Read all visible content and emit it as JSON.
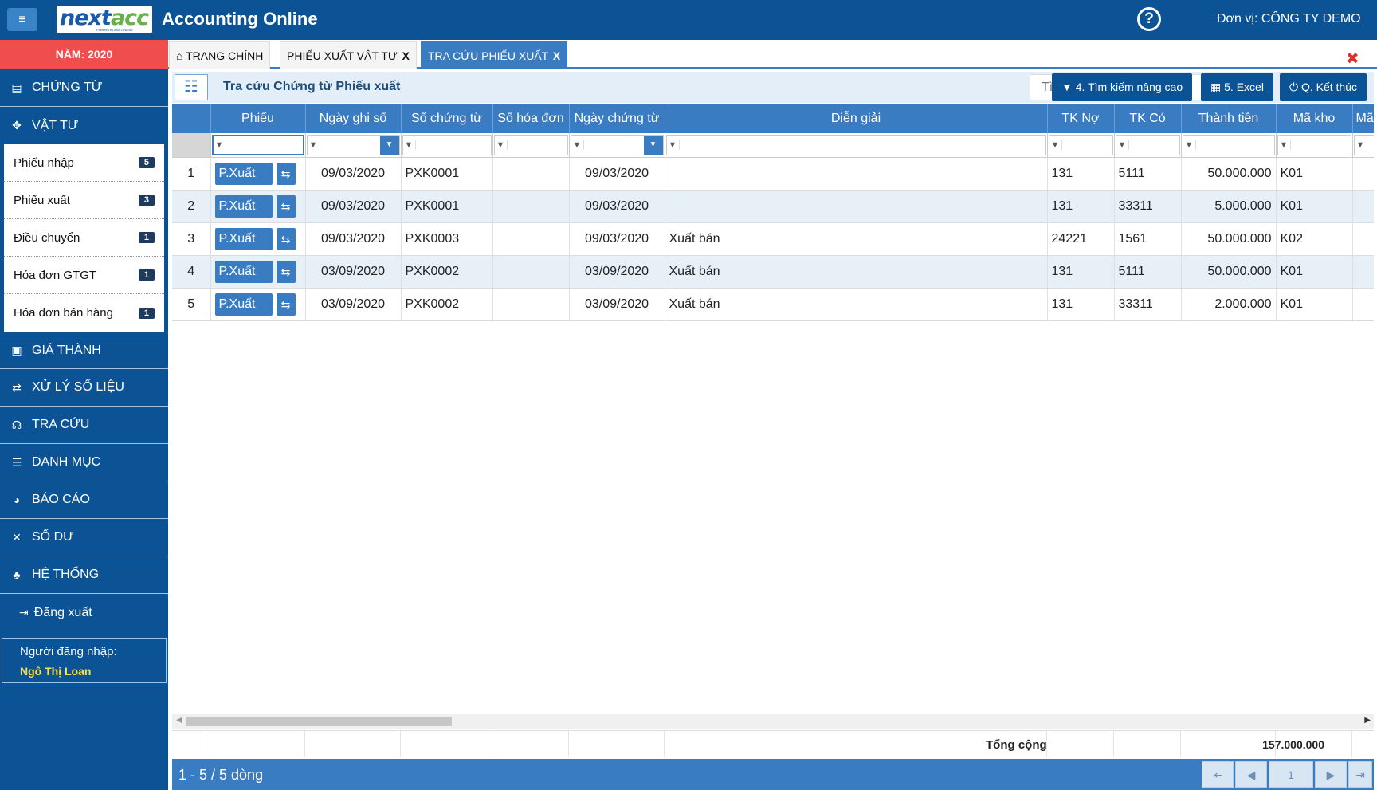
{
  "header": {
    "menu_icon": "hamburger-icon",
    "logo_part1": "next",
    "logo_part2": "acc",
    "logo_sub": "Powered by ANA ONLINE",
    "app_title": "Accounting Online",
    "help_icon": "question-circle-icon",
    "help_glyph": "?",
    "unit_label": "Đơn vị: CÔNG TY DEMO"
  },
  "sidebar": {
    "year": "NĂM: 2020",
    "items_top": [
      {
        "label": "CHỨNG TỪ",
        "icon": "▤"
      },
      {
        "label": "VẬT TƯ",
        "icon": "✥"
      }
    ],
    "submenu": [
      {
        "label": "Phiếu nhập",
        "badge": "5"
      },
      {
        "label": "Phiếu xuất",
        "badge": "3"
      },
      {
        "label": "Điều chuyển",
        "badge": "1"
      },
      {
        "label": "Hóa đơn GTGT",
        "badge": "1"
      },
      {
        "label": "Hóa đơn bán hàng",
        "badge": "1"
      }
    ],
    "items_bottom": [
      {
        "label": "GIÁ THÀNH",
        "icon": "▣"
      },
      {
        "label": "XỬ LÝ SỐ LIỆU",
        "icon": "⇄"
      },
      {
        "label": "TRA CỨU",
        "icon": "☊"
      },
      {
        "label": "DANH MỤC",
        "icon": "☰"
      },
      {
        "label": "BÁO CÁO",
        "icon": "◕"
      },
      {
        "label": "SỐ DƯ",
        "icon": "✕"
      },
      {
        "label": "HỆ THỐNG",
        "icon": "♣"
      }
    ],
    "logout": "Đăng xuất",
    "login_label": "Người đăng nhập:",
    "login_name": "Ngô Thị Loan"
  },
  "tabs": {
    "home": "TRANG CHÍNH",
    "tab2": "PHIẾU XUẤT VẬT TƯ",
    "tab3": "TRA CỨU PHIẾU XUẤT",
    "close_mark": "X"
  },
  "toolbar": {
    "title": "Tra cứu Chứng từ Phiếu xuất",
    "search_placeholder": "Tìm theo cột bất kỳ..",
    "btn_advanced": "4. Tìm kiếm nâng cao",
    "btn_excel": "5. Excel",
    "btn_exit": "Q. Kết thúc"
  },
  "grid": {
    "columns": [
      "Phiếu",
      "Ngày ghi sổ",
      "Số chứng từ",
      "Số hóa đơn",
      "Ngày chứng từ",
      "Diễn giải",
      "TK Nợ",
      "TK Có",
      "Thành tiền",
      "Mã kho",
      "Mã"
    ],
    "rows": [
      {
        "no": "1",
        "btn": "P.Xuất",
        "ngay_ghi_so": "09/03/2020",
        "so_chung_tu": "PXK0001",
        "so_hoa_don": "",
        "ngay_chung_tu": "09/03/2020",
        "dien_giai": "",
        "tk_no": "131",
        "tk_co": "5111",
        "thanh_tien": "50.000.000",
        "ma_kho": "K01"
      },
      {
        "no": "2",
        "btn": "P.Xuất",
        "ngay_ghi_so": "09/03/2020",
        "so_chung_tu": "PXK0001",
        "so_hoa_don": "",
        "ngay_chung_tu": "09/03/2020",
        "dien_giai": "",
        "tk_no": "131",
        "tk_co": "33311",
        "thanh_tien": "5.000.000",
        "ma_kho": "K01"
      },
      {
        "no": "3",
        "btn": "P.Xuất",
        "ngay_ghi_so": "09/03/2020",
        "so_chung_tu": "PXK0003",
        "so_hoa_don": "",
        "ngay_chung_tu": "09/03/2020",
        "dien_giai": "Xuất bán",
        "tk_no": "24221",
        "tk_co": "1561",
        "thanh_tien": "50.000.000",
        "ma_kho": "K02"
      },
      {
        "no": "4",
        "btn": "P.Xuất",
        "ngay_ghi_so": "03/09/2020",
        "so_chung_tu": "PXK0002",
        "so_hoa_don": "",
        "ngay_chung_tu": "03/09/2020",
        "dien_giai": "Xuất bán",
        "tk_no": "131",
        "tk_co": "5111",
        "thanh_tien": "50.000.000",
        "ma_kho": "K01"
      },
      {
        "no": "5",
        "btn": "P.Xuất",
        "ngay_ghi_so": "03/09/2020",
        "so_chung_tu": "PXK0002",
        "so_hoa_don": "",
        "ngay_chung_tu": "03/09/2020",
        "dien_giai": "Xuất bán",
        "tk_no": "131",
        "tk_co": "33311",
        "thanh_tien": "2.000.000",
        "ma_kho": "K01"
      }
    ],
    "total_label": "Tổng cộng",
    "total_value": "157.000.000"
  },
  "pager": {
    "info": "1 - 5 / 5 dòng",
    "page": "1"
  },
  "colors": {
    "header_bg": "#0b5394",
    "accent": "#3a7cc2",
    "year_bg": "#f04e4e"
  }
}
